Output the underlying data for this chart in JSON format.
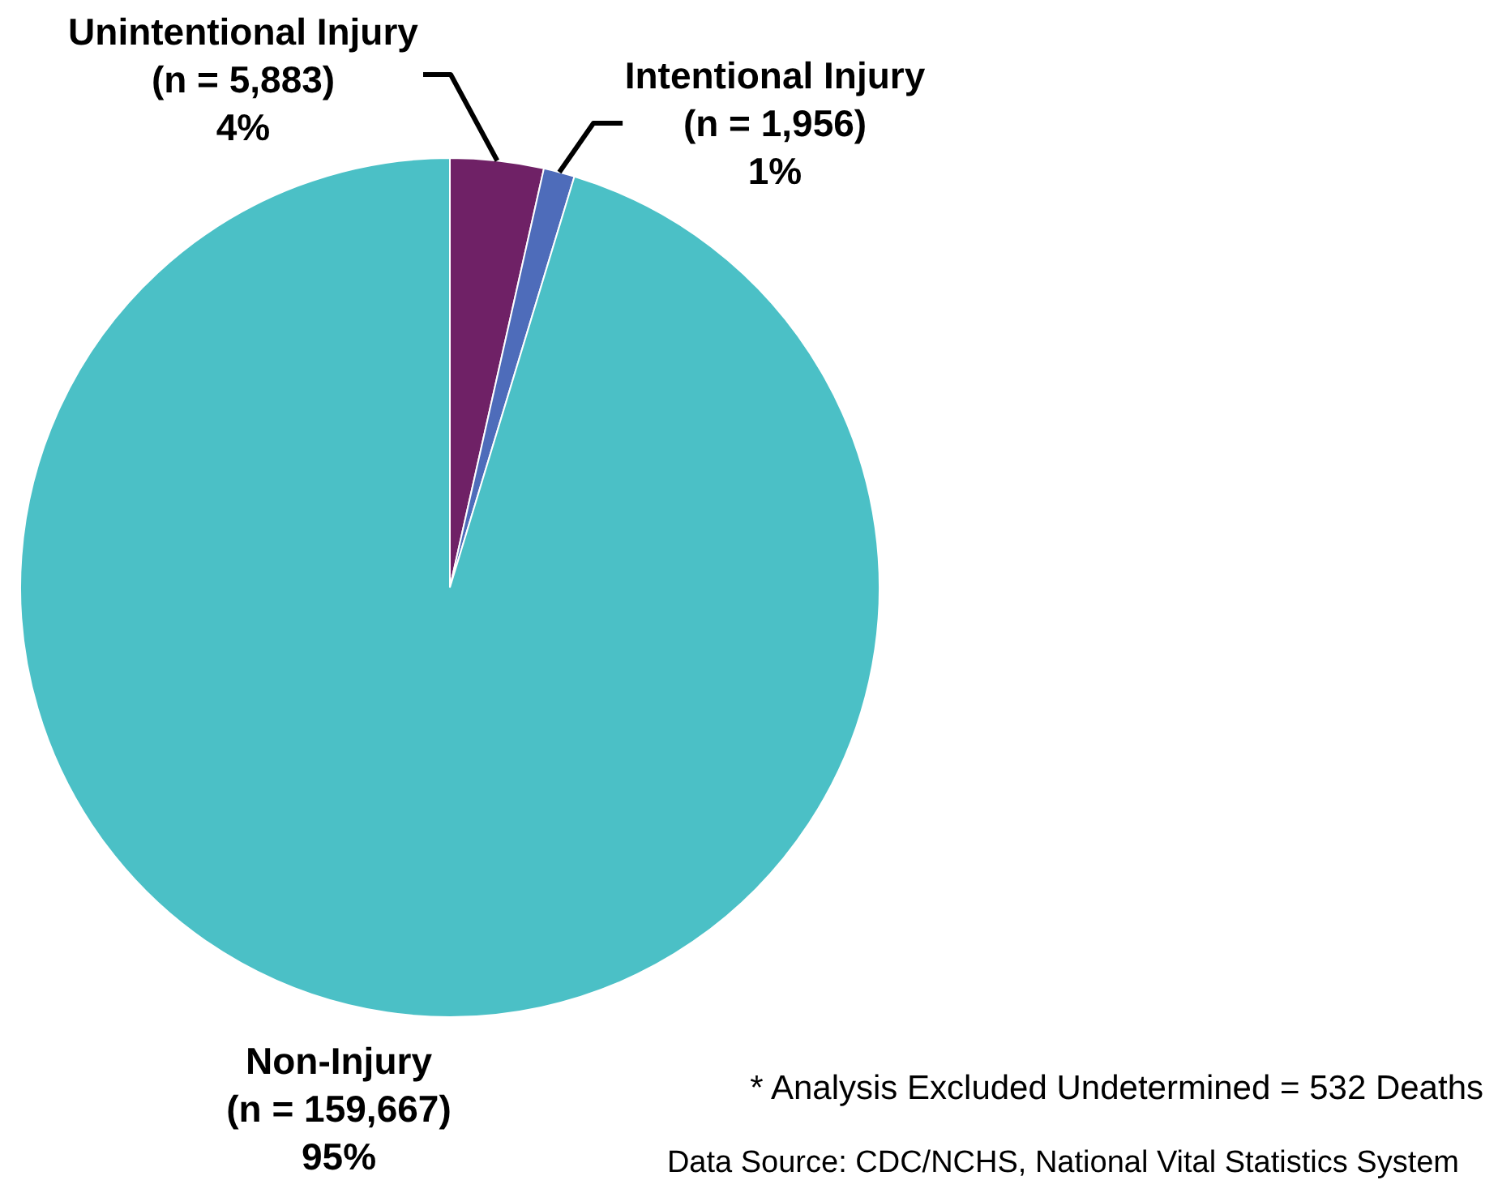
{
  "chart_data": {
    "type": "pie",
    "categories": [
      "Unintentional Injury",
      "Intentional Injury",
      "Non-Injury"
    ],
    "values": [
      5883,
      1956,
      159667
    ],
    "colors": [
      "#6f2166",
      "#4e6cba",
      "#4bc0c6"
    ],
    "value_labels": [
      "(n = 5,883)\n4%",
      "(n = 1,956)\n1%",
      "(n = 159,667)\n95%"
    ],
    "legend": false,
    "annotations": [
      "* Analysis Excluded Undetermined = 532 Deaths",
      "Data Source: CDC/NCHS, National Vital Statistics System"
    ]
  }
}
